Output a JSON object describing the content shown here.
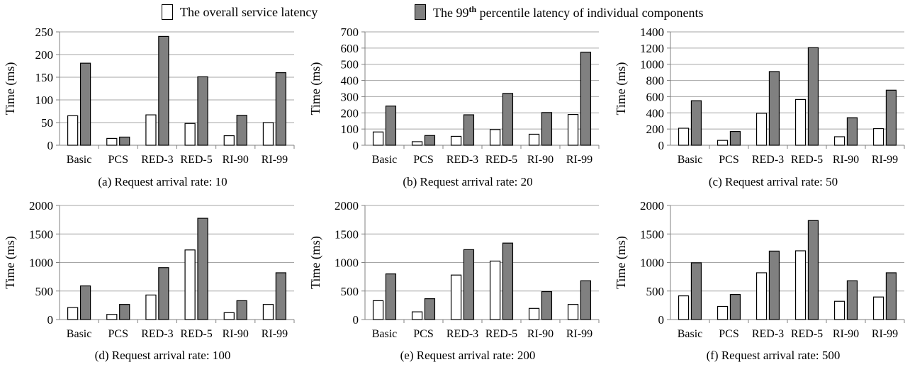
{
  "legend": {
    "overall": "The overall service latency",
    "p99_prefix": "The 99",
    "p99_sup": "th",
    "p99_suffix": " percentile latency of individual components"
  },
  "colors": {
    "overall": "#ffffff",
    "p99": "#808080",
    "outline": "#000000",
    "grid": "#a6a6a6"
  },
  "chart_data": [
    {
      "type": "bar",
      "title": "(a) Request arrival rate: 10",
      "ylabel": "Time (ms)",
      "xlabel": "",
      "categories": [
        "Basic",
        "PCS",
        "RED-3",
        "RED-5",
        "RI-90",
        "RI-99"
      ],
      "ylim": [
        0,
        250
      ],
      "yticks": [
        0,
        50,
        100,
        150,
        200,
        250
      ],
      "grid": true,
      "series": [
        {
          "name": "The overall service latency",
          "values": [
            65,
            15,
            67,
            48,
            21,
            50
          ]
        },
        {
          "name": "The 99th percentile latency of individual components",
          "values": [
            181,
            18,
            240,
            151,
            66,
            160
          ]
        }
      ]
    },
    {
      "type": "bar",
      "title": "(b) Request arrival rate: 20",
      "ylabel": "Time (ms)",
      "xlabel": "",
      "categories": [
        "Basic",
        "PCS",
        "RED-3",
        "RED-5",
        "RI-90",
        "RI-99"
      ],
      "ylim": [
        0,
        700
      ],
      "yticks": [
        0,
        100,
        200,
        300,
        400,
        500,
        600,
        700
      ],
      "grid": true,
      "series": [
        {
          "name": "The overall service latency",
          "values": [
            82,
            22,
            55,
            97,
            68,
            190
          ]
        },
        {
          "name": "The 99th percentile latency of individual components",
          "values": [
            242,
            60,
            188,
            320,
            202,
            575
          ]
        }
      ]
    },
    {
      "type": "bar",
      "title": "(c) Request arrival rate: 50",
      "ylabel": "Time (ms)",
      "xlabel": "",
      "categories": [
        "Basic",
        "PCS",
        "RED-3",
        "RED-5",
        "RI-90",
        "RI-99"
      ],
      "ylim": [
        0,
        1400
      ],
      "yticks": [
        0,
        200,
        400,
        600,
        800,
        1000,
        1200,
        1400
      ],
      "grid": true,
      "series": [
        {
          "name": "The overall service latency",
          "values": [
            210,
            60,
            395,
            565,
            105,
            205
          ]
        },
        {
          "name": "The 99th percentile latency of individual components",
          "values": [
            550,
            170,
            910,
            1205,
            340,
            680
          ]
        }
      ]
    },
    {
      "type": "bar",
      "title": "(d) Request arrival rate: 100",
      "ylabel": "Time (ms)",
      "xlabel": "",
      "categories": [
        "Basic",
        "PCS",
        "RED-3",
        "RED-5",
        "RI-90",
        "RI-99"
      ],
      "ylim": [
        0,
        2000
      ],
      "yticks": [
        0,
        500,
        1000,
        1500,
        2000
      ],
      "grid": true,
      "series": [
        {
          "name": "The overall service latency",
          "values": [
            210,
            90,
            430,
            1220,
            120,
            265
          ]
        },
        {
          "name": "The 99th percentile latency of individual components",
          "values": [
            590,
            265,
            910,
            1775,
            330,
            820
          ]
        }
      ]
    },
    {
      "type": "bar",
      "title": "(e) Request arrival rate: 200",
      "ylabel": "Time (ms)",
      "xlabel": "",
      "categories": [
        "Basic",
        "PCS",
        "RED-3",
        "RED-5",
        "RI-90",
        "RI-99"
      ],
      "ylim": [
        0,
        2000
      ],
      "yticks": [
        0,
        500,
        1000,
        1500,
        2000
      ],
      "grid": true,
      "series": [
        {
          "name": "The overall service latency",
          "values": [
            330,
            135,
            780,
            1025,
            195,
            265
          ]
        },
        {
          "name": "The 99th percentile latency of individual components",
          "values": [
            800,
            365,
            1225,
            1340,
            490,
            680
          ]
        }
      ]
    },
    {
      "type": "bar",
      "title": "(f) Request arrival rate: 500",
      "ylabel": "Time (ms)",
      "xlabel": "",
      "categories": [
        "Basic",
        "PCS",
        "RED-3",
        "RED-5",
        "RI-90",
        "RI-99"
      ],
      "ylim": [
        0,
        2000
      ],
      "yticks": [
        0,
        500,
        1000,
        1500,
        2000
      ],
      "grid": true,
      "series": [
        {
          "name": "The overall service latency",
          "values": [
            415,
            230,
            820,
            1205,
            320,
            395
          ]
        },
        {
          "name": "The 99th percentile latency of individual components",
          "values": [
            995,
            440,
            1200,
            1735,
            680,
            820
          ]
        }
      ]
    }
  ]
}
